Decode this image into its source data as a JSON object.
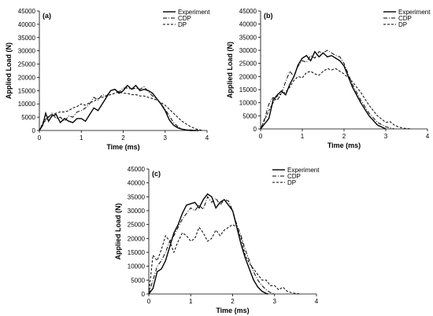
{
  "figure": {
    "panels": [
      "(a)",
      "(b)",
      "(c)"
    ]
  },
  "chart_data": [
    {
      "type": "line",
      "panel_label": "(a)",
      "xlabel": "Time (ms)",
      "ylabel": "Applied Load (N)",
      "xlim": [
        0,
        4
      ],
      "ylim": [
        0,
        45000
      ],
      "xticks": [
        0,
        1,
        2,
        3,
        4
      ],
      "yticks": [
        0,
        5000,
        10000,
        15000,
        20000,
        25000,
        30000,
        35000,
        40000,
        45000
      ],
      "grid": false,
      "legend_position": "top-right",
      "series": [
        {
          "name": "Experiment",
          "style": "solid",
          "x": [
            0,
            0.08,
            0.15,
            0.22,
            0.3,
            0.4,
            0.5,
            0.6,
            0.7,
            0.8,
            0.9,
            1.0,
            1.1,
            1.2,
            1.3,
            1.4,
            1.5,
            1.6,
            1.7,
            1.8,
            1.9,
            2.0,
            2.1,
            2.2,
            2.3,
            2.4,
            2.5,
            2.6,
            2.7,
            2.8,
            2.9,
            3.0,
            3.1,
            3.2,
            3.3,
            3.4,
            3.5,
            3.6,
            3.8
          ],
          "y": [
            0,
            2000,
            6500,
            3500,
            5500,
            6000,
            3000,
            4500,
            3500,
            3000,
            4500,
            4500,
            3500,
            6000,
            8500,
            7500,
            10000,
            12500,
            15000,
            15500,
            14000,
            15000,
            17000,
            15500,
            17000,
            15000,
            15500,
            15000,
            14000,
            12000,
            10000,
            7500,
            4000,
            2000,
            1000,
            500,
            200,
            0,
            0
          ]
        },
        {
          "name": "CDP",
          "style": "dash-dot",
          "x": [
            0,
            0.1,
            0.2,
            0.3,
            0.4,
            0.5,
            0.6,
            0.7,
            0.8,
            0.9,
            1.0,
            1.1,
            1.2,
            1.3,
            1.4,
            1.5,
            1.6,
            1.7,
            1.8,
            1.9,
            2.0,
            2.1,
            2.2,
            2.3,
            2.4,
            2.5,
            2.6,
            2.7,
            2.8,
            2.9,
            3.0,
            3.1,
            3.2,
            3.3,
            3.4,
            3.6,
            3.8
          ],
          "y": [
            0,
            3000,
            4500,
            6500,
            4500,
            5000,
            3500,
            5500,
            5000,
            7000,
            7500,
            8500,
            10000,
            12500,
            11500,
            13500,
            13000,
            15000,
            15500,
            14500,
            16000,
            16000,
            15500,
            16000,
            15500,
            16500,
            14500,
            13000,
            12000,
            10000,
            8000,
            5500,
            3000,
            1500,
            500,
            200,
            0
          ]
        },
        {
          "name": "DP",
          "style": "dashed",
          "x": [
            0,
            0.1,
            0.2,
            0.3,
            0.4,
            0.5,
            0.6,
            0.7,
            0.8,
            0.9,
            1.0,
            1.1,
            1.2,
            1.3,
            1.4,
            1.5,
            1.6,
            1.7,
            1.8,
            1.9,
            2.0,
            2.1,
            2.2,
            2.3,
            2.4,
            2.5,
            2.6,
            2.7,
            2.8,
            2.9,
            3.0,
            3.1,
            3.2,
            3.3,
            3.4,
            3.5,
            3.6,
            3.7,
            3.8,
            3.9
          ],
          "y": [
            0,
            3500,
            5000,
            6000,
            6500,
            7000,
            7000,
            7500,
            8500,
            9000,
            10000,
            9500,
            10500,
            11000,
            12000,
            12500,
            13000,
            13500,
            14000,
            14500,
            14000,
            14000,
            13500,
            13500,
            13000,
            13000,
            12500,
            12000,
            11500,
            10500,
            9500,
            8000,
            6500,
            5000,
            3500,
            2500,
            1500,
            800,
            300,
            0
          ]
        }
      ]
    },
    {
      "type": "line",
      "panel_label": "(b)",
      "xlabel": "Time (ms)",
      "ylabel": "Applied Load (N)",
      "xlim": [
        0,
        4
      ],
      "ylim": [
        0,
        45000
      ],
      "xticks": [
        0,
        1,
        2,
        3,
        4
      ],
      "yticks": [
        0,
        5000,
        10000,
        15000,
        20000,
        25000,
        30000,
        35000,
        40000,
        45000
      ],
      "grid": false,
      "legend_position": "top-right",
      "series": [
        {
          "name": "Experiment",
          "style": "solid",
          "x": [
            0,
            0.1,
            0.2,
            0.3,
            0.4,
            0.5,
            0.6,
            0.7,
            0.8,
            0.9,
            1.0,
            1.1,
            1.2,
            1.3,
            1.4,
            1.5,
            1.6,
            1.7,
            1.8,
            1.9,
            2.0,
            2.1,
            2.2,
            2.4,
            2.6,
            2.8,
            3.0
          ],
          "y": [
            0,
            2000,
            4000,
            11000,
            13000,
            14500,
            13000,
            17000,
            20000,
            24500,
            27000,
            28000,
            26000,
            29500,
            27500,
            29000,
            27500,
            28000,
            27000,
            26000,
            24000,
            20000,
            16000,
            10000,
            5000,
            1500,
            0
          ]
        },
        {
          "name": "CDP",
          "style": "dash-dot",
          "x": [
            0,
            0.1,
            0.2,
            0.3,
            0.4,
            0.5,
            0.6,
            0.7,
            0.8,
            0.9,
            1.0,
            1.1,
            1.2,
            1.3,
            1.4,
            1.5,
            1.6,
            1.7,
            1.8,
            1.9,
            2.0,
            2.1,
            2.2,
            2.4,
            2.6,
            2.8,
            3.0,
            3.2
          ],
          "y": [
            0,
            4000,
            9500,
            12000,
            11000,
            13500,
            18000,
            22000,
            20000,
            24000,
            26000,
            25500,
            28000,
            27000,
            29500,
            29000,
            30000,
            29000,
            28000,
            27500,
            25000,
            21000,
            17000,
            11000,
            6000,
            2500,
            800,
            0
          ]
        },
        {
          "name": "DP",
          "style": "dashed",
          "x": [
            0,
            0.1,
            0.2,
            0.3,
            0.4,
            0.5,
            0.6,
            0.7,
            0.8,
            0.9,
            1.0,
            1.1,
            1.2,
            1.3,
            1.4,
            1.5,
            1.6,
            1.7,
            1.8,
            1.9,
            2.0,
            2.2,
            2.4,
            2.6,
            2.8,
            3.0,
            3.1,
            3.2,
            3.3,
            3.4,
            3.6
          ],
          "y": [
            0,
            3500,
            7000,
            10000,
            12500,
            13500,
            14000,
            16000,
            18500,
            20000,
            19500,
            21500,
            22000,
            21000,
            20500,
            22000,
            23000,
            22500,
            23000,
            22000,
            21000,
            18000,
            14000,
            9000,
            5000,
            2500,
            2800,
            1500,
            800,
            300,
            0
          ]
        }
      ]
    },
    {
      "type": "line",
      "panel_label": "(c)",
      "xlabel": "Time (ms)",
      "ylabel": "Applied Load (N)",
      "xlim": [
        0,
        4
      ],
      "ylim": [
        0,
        45000
      ],
      "xticks": [
        0,
        1,
        2,
        3,
        4
      ],
      "yticks": [
        0,
        5000,
        10000,
        15000,
        20000,
        25000,
        30000,
        35000,
        40000,
        45000
      ],
      "grid": false,
      "legend_position": "top-right",
      "series": [
        {
          "name": "Experiment",
          "style": "solid",
          "x": [
            0,
            0.1,
            0.2,
            0.3,
            0.4,
            0.5,
            0.6,
            0.7,
            0.8,
            0.9,
            1.0,
            1.1,
            1.2,
            1.3,
            1.4,
            1.5,
            1.6,
            1.7,
            1.8,
            1.9,
            2.0,
            2.1,
            2.2,
            2.3,
            2.4,
            2.5,
            2.6,
            2.7,
            2.8,
            2.85
          ],
          "y": [
            0,
            2000,
            8000,
            9000,
            12000,
            17000,
            22000,
            25000,
            29000,
            32000,
            32500,
            33000,
            31000,
            34000,
            36000,
            35000,
            31000,
            33000,
            34000,
            32000,
            30000,
            24000,
            18000,
            13000,
            9000,
            5000,
            2500,
            1000,
            200,
            0
          ]
        },
        {
          "name": "CDP",
          "style": "dash-dot",
          "x": [
            0,
            0.1,
            0.2,
            0.3,
            0.4,
            0.5,
            0.6,
            0.7,
            0.8,
            0.9,
            1.0,
            1.1,
            1.2,
            1.3,
            1.4,
            1.5,
            1.6,
            1.7,
            1.8,
            1.9,
            2.0,
            2.1,
            2.2,
            2.3,
            2.4,
            2.5,
            2.6,
            2.7,
            2.8,
            2.9,
            3.0
          ],
          "y": [
            0,
            5000,
            10000,
            12000,
            15000,
            19000,
            21000,
            24000,
            27000,
            29000,
            31000,
            30000,
            32000,
            30500,
            35000,
            33000,
            34500,
            32000,
            34000,
            33500,
            30000,
            25000,
            21000,
            16000,
            12000,
            8000,
            5000,
            3000,
            1500,
            500,
            0
          ]
        },
        {
          "name": "DP",
          "style": "dashed",
          "x": [
            0,
            0.1,
            0.2,
            0.3,
            0.4,
            0.5,
            0.6,
            0.7,
            0.8,
            0.9,
            1.0,
            1.1,
            1.2,
            1.3,
            1.4,
            1.5,
            1.6,
            1.7,
            1.8,
            1.9,
            2.0,
            2.1,
            2.2,
            2.3,
            2.4,
            2.5,
            2.6,
            2.7,
            2.8,
            2.9,
            3.0,
            3.1,
            3.2,
            3.3,
            3.4,
            3.5,
            3.6
          ],
          "y": [
            0,
            14000,
            12000,
            16000,
            21000,
            19000,
            15000,
            19000,
            22000,
            21000,
            19000,
            20000,
            24000,
            22000,
            19000,
            20000,
            23000,
            21000,
            23000,
            24000,
            25000,
            24000,
            20000,
            14000,
            11000,
            9000,
            7000,
            5000,
            5000,
            3000,
            3000,
            1500,
            2500,
            1000,
            500,
            200,
            0
          ]
        }
      ]
    }
  ]
}
